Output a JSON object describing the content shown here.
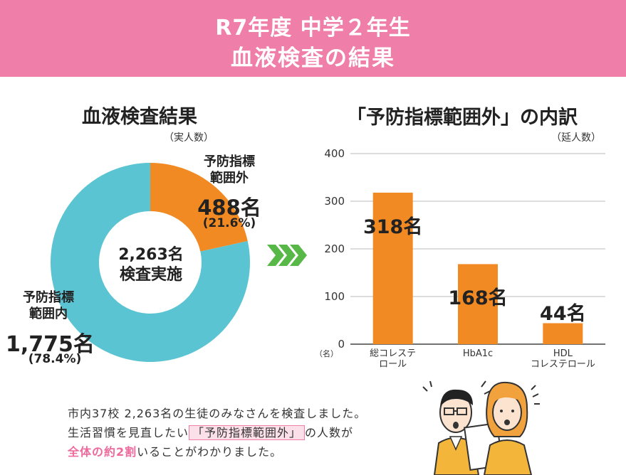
{
  "header": {
    "line1": "R7年度 中学２年生",
    "line2": "血液検査の結果"
  },
  "left": {
    "title": "血液検査結果",
    "unit_note": "（実人数）",
    "center_line1": "2,263名",
    "center_line2": "検査実施",
    "out_label_line1": "予防指標",
    "out_label_line2": "範囲外",
    "out_count": "488名",
    "out_pct": "(21.6%)",
    "in_label_line1": "予防指標",
    "in_label_line2": "範囲内",
    "in_count": "1,775名",
    "in_pct": "(78.4%)"
  },
  "right": {
    "title": "「予防指標範囲外」の内訳",
    "unit_note": "（延人数）",
    "y_unit": "（名）"
  },
  "chart_data": [
    {
      "type": "pie",
      "title": "血液検査結果",
      "categories": [
        "予防指標範囲外",
        "予防指標範囲内"
      ],
      "values": [
        488,
        1775
      ],
      "percent": [
        21.6,
        78.4
      ],
      "colors": [
        "#f28a23",
        "#5bc4d2"
      ]
    },
    {
      "type": "bar",
      "title": "「予防指標範囲外」の内訳",
      "categories": [
        "総コレステロール",
        "HbA1c",
        "HDLコレステロール"
      ],
      "category_lines": [
        [
          "総コレステ",
          "ロール"
        ],
        [
          "HbA1c"
        ],
        [
          "HDL",
          "コレステロール"
        ]
      ],
      "values": [
        318,
        168,
        44
      ],
      "value_labels": [
        "318名",
        "168名",
        "44名"
      ],
      "ylim": [
        0,
        400
      ],
      "yticks": [
        0,
        100,
        200,
        300,
        400
      ],
      "ylabel": "（名）",
      "color": "#f28a23",
      "grid": true
    }
  ],
  "footer": {
    "line1": "市内37校 2,263名の生徒のみなさんを検査しました。",
    "line2_pre": "生活習慣を見直したい",
    "line2_highlight": "「予防指標範囲外」",
    "line2_post": "の人数が",
    "line3_pink": "全体の約2割",
    "line3_post": "いることがわかりました。"
  },
  "colors": {
    "header": "#ef7ea8",
    "orange": "#f28a23",
    "teal": "#5bc4d2",
    "arrow": "#58b847"
  }
}
